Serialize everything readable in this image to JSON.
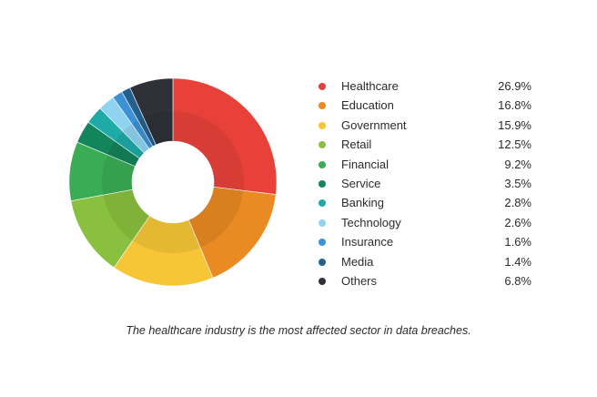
{
  "chart_data": {
    "type": "pie",
    "variant": "donut",
    "categories": [
      "Healthcare",
      "Education",
      "Government",
      "Retail",
      "Financial",
      "Service",
      "Banking",
      "Technology",
      "Insurance",
      "Media",
      "Others"
    ],
    "values": [
      26.9,
      16.8,
      15.9,
      12.5,
      9.2,
      3.5,
      2.8,
      2.6,
      1.6,
      1.4,
      6.8
    ],
    "value_labels": [
      "26.9%",
      "16.8%",
      "15.9%",
      "12.5%",
      "9.2%",
      "3.5%",
      "2.8%",
      "2.6%",
      "1.6%",
      "1.4%",
      "6.8%"
    ],
    "colors": [
      "#e8413a",
      "#e98a23",
      "#f7c637",
      "#8ac03f",
      "#3aad54",
      "#13845c",
      "#1eaba8",
      "#8fd3f0",
      "#3d91d6",
      "#24608e",
      "#2e3238"
    ],
    "legend_position": "right",
    "start_angle": "12 o'clock, clockwise"
  },
  "caption": "The healthcare industry is the most affected sector in data breaches."
}
